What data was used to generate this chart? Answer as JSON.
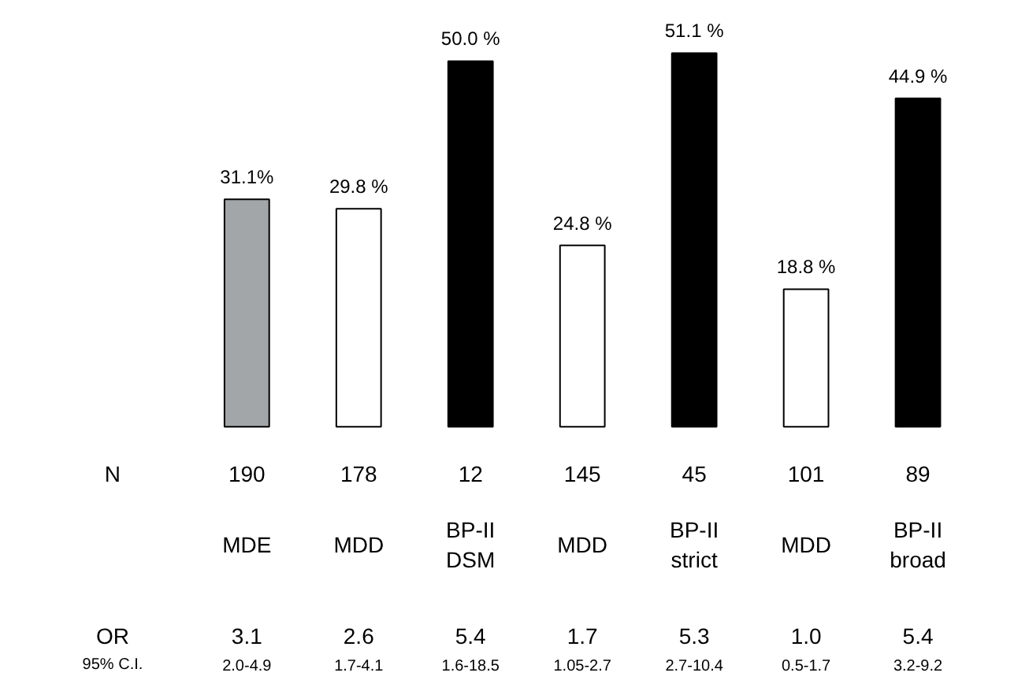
{
  "chart_data": {
    "type": "bar",
    "categories": [
      "MDE",
      "MDD",
      "BP-II\nDSM",
      "MDD",
      "BP-II\nstrict",
      "MDD",
      "BP-II\nbroad"
    ],
    "values": [
      31.1,
      29.8,
      50.0,
      24.8,
      51.1,
      18.8,
      44.9
    ],
    "colors": [
      "#a3a6a8",
      "#ffffff",
      "#000000",
      "#ffffff",
      "#000000",
      "#ffffff",
      "#000000"
    ],
    "value_labels": [
      "31.1%",
      "29.8 %",
      "50.0 %",
      "24.8 %",
      "51.1 %",
      "18.8 %",
      "44.9 %"
    ],
    "annotations": [
      "N",
      "190",
      "178",
      "12",
      "145",
      "45",
      "101",
      "89",
      "OR",
      "3.1",
      "2.6",
      "5.4",
      "1.7",
      "5.3",
      "1.0",
      "5.4",
      "95% C.I.",
      "2.0-4.9",
      "1.7-4.1",
      "1.6-18.5",
      "1.05-2.7",
      "2.7-10.4",
      "0.5-1.7",
      "3.2-9.2"
    ],
    "grid": false
  }
}
